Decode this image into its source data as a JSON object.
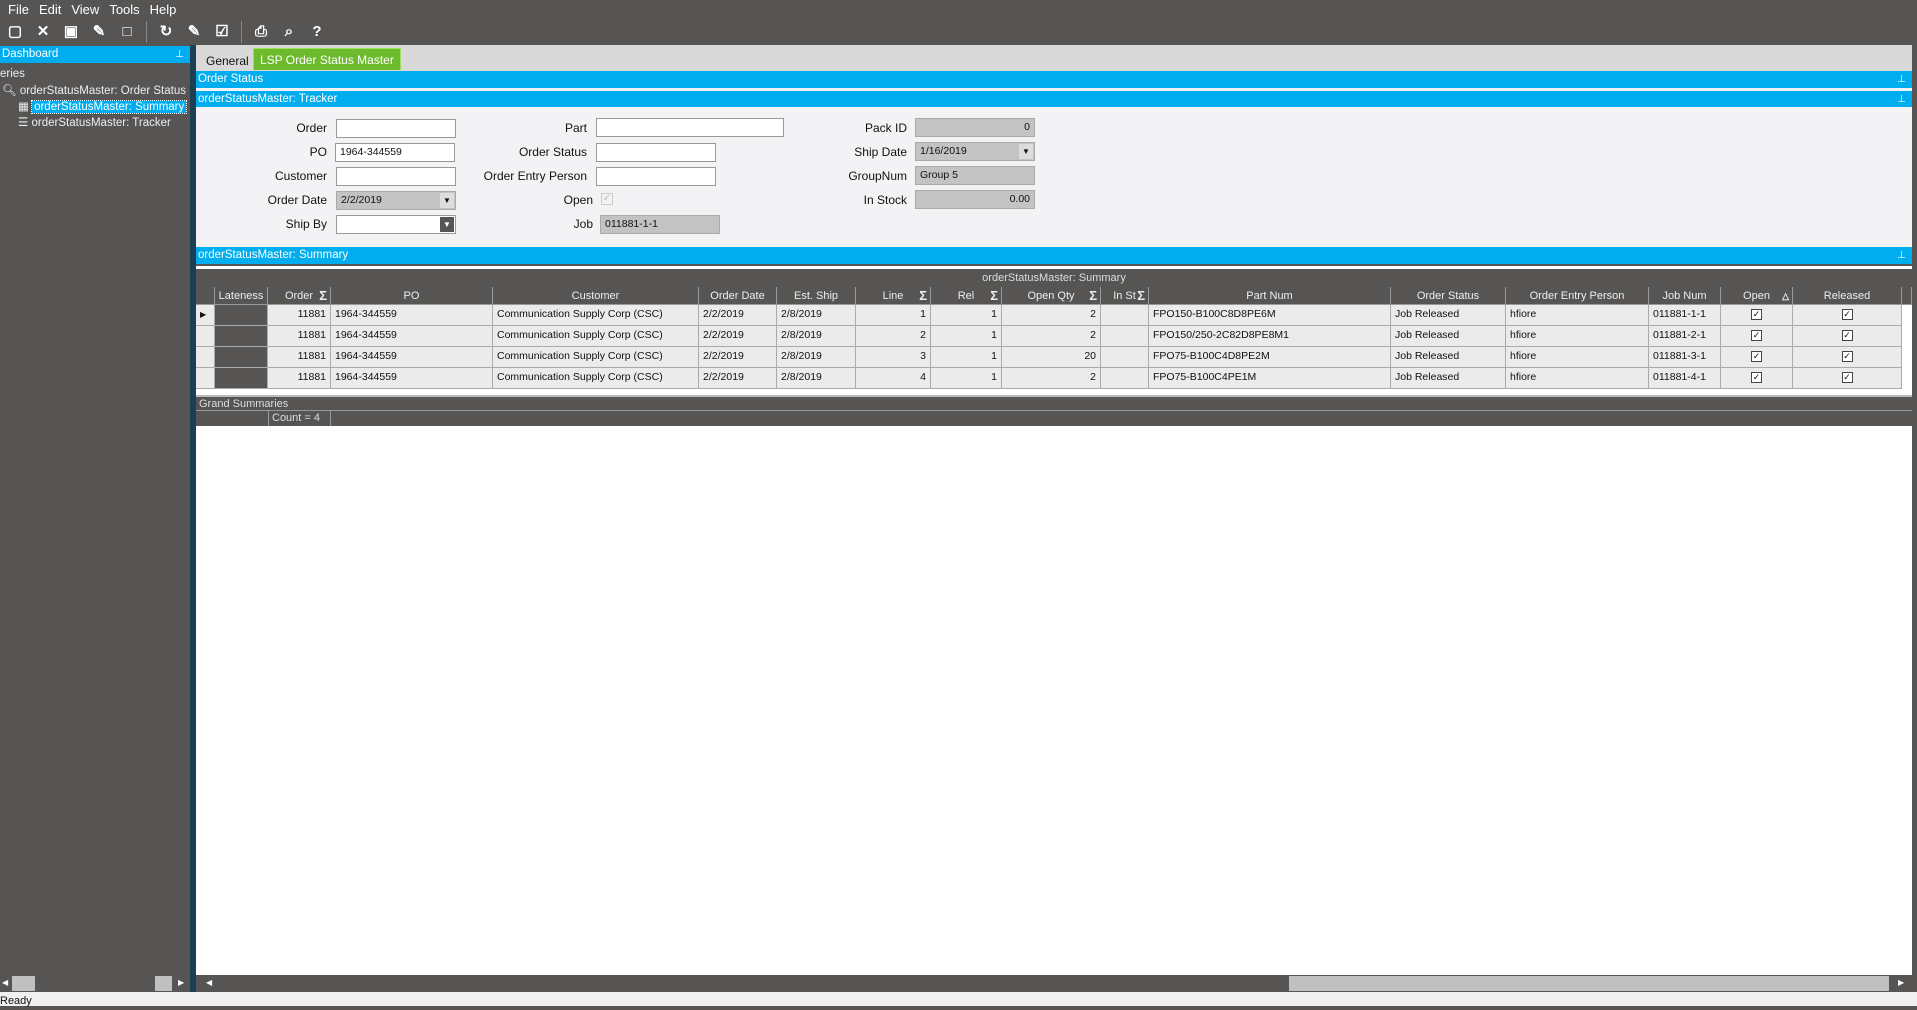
{
  "menu": [
    "File",
    "Edit",
    "View",
    "Tools",
    "Help"
  ],
  "toolbar": {
    "icons": [
      "new-icon",
      "delete-icon",
      "save-icon",
      "clear-icon",
      "note-icon",
      "refresh-icon",
      "clear-all-icon",
      "form-icon",
      "print-icon",
      "print-preview-icon",
      "help-icon"
    ]
  },
  "sidebar": {
    "title": "Dashboard",
    "section": "eries",
    "items": [
      {
        "label": "orderStatusMaster: Order Status",
        "icon": "query-icon"
      },
      {
        "label": "orderStatusMaster: Summary",
        "icon": "grid-icon",
        "selected": true
      },
      {
        "label": "orderStatusMaster: Tracker",
        "icon": "tracker-icon"
      }
    ]
  },
  "tabs": [
    {
      "label": "General"
    },
    {
      "label": "LSP Order Status Master",
      "active": true
    }
  ],
  "panels": {
    "order_status": "Order Status",
    "tracker": "orderStatusMaster: Tracker",
    "summary": "orderStatusMaster: Summary"
  },
  "form": {
    "order": {
      "label": "Order",
      "value": ""
    },
    "po": {
      "label": "PO",
      "value": "1964-344559"
    },
    "customer": {
      "label": "Customer",
      "value": ""
    },
    "order_date": {
      "label": "Order Date",
      "value": "2/2/2019"
    },
    "ship_by": {
      "label": "Ship By",
      "value": ""
    },
    "part": {
      "label": "Part",
      "value": ""
    },
    "order_status": {
      "label": "Order Status",
      "value": ""
    },
    "order_entry_person": {
      "label": "Order Entry Person",
      "value": ""
    },
    "open": {
      "label": "Open",
      "checked": true
    },
    "job": {
      "label": "Job",
      "value": "011881-1-1"
    },
    "pack_id": {
      "label": "Pack ID",
      "value": "0"
    },
    "ship_date": {
      "label": "Ship Date",
      "value": "1/16/2019"
    },
    "groupnum": {
      "label": "GroupNum",
      "value": "Group 5"
    },
    "in_stock": {
      "label": "In Stock",
      "value": "0.00"
    }
  },
  "grid": {
    "title": "orderStatusMaster: Summary",
    "columns": [
      "Lateness",
      "Order",
      "PO",
      "Customer",
      "Order Date",
      "Est. Ship",
      "Line",
      "Rel",
      "Open Qty",
      "In St",
      "Part Num",
      "Order Status",
      "Order Entry Person",
      "Job Num",
      "Open",
      "Released"
    ],
    "rows": [
      [
        "",
        "11881",
        "1964-344559",
        "Communication Supply Corp (CSC)",
        "2/2/2019",
        "2/8/2019",
        "1",
        "1",
        "2",
        "",
        "FPO150-B100C8D8PE6M",
        "Job Released",
        "hfiore",
        "011881-1-1",
        true,
        true
      ],
      [
        "",
        "11881",
        "1964-344559",
        "Communication Supply Corp (CSC)",
        "2/2/2019",
        "2/8/2019",
        "2",
        "1",
        "2",
        "",
        "FPO150/250-2C82D8PE8M1",
        "Job Released",
        "hfiore",
        "011881-2-1",
        true,
        true
      ],
      [
        "",
        "11881",
        "1964-344559",
        "Communication Supply Corp (CSC)",
        "2/2/2019",
        "2/8/2019",
        "3",
        "1",
        "20",
        "",
        "FPO75-B100C4D8PE2M",
        "Job Released",
        "hfiore",
        "011881-3-1",
        true,
        true
      ],
      [
        "",
        "11881",
        "1964-344559",
        "Communication Supply Corp (CSC)",
        "2/2/2019",
        "2/8/2019",
        "4",
        "1",
        "2",
        "",
        "FPO75-B100C4PE1M",
        "Job Released",
        "hfiore",
        "011881-4-1",
        true,
        true
      ]
    ],
    "grand_summaries": "Grand Summaries",
    "count": "Count = 4"
  },
  "status": "Ready",
  "colors": {
    "accent": "#00adef",
    "active_tab": "#6cbb2c",
    "chrome": "#575553"
  }
}
